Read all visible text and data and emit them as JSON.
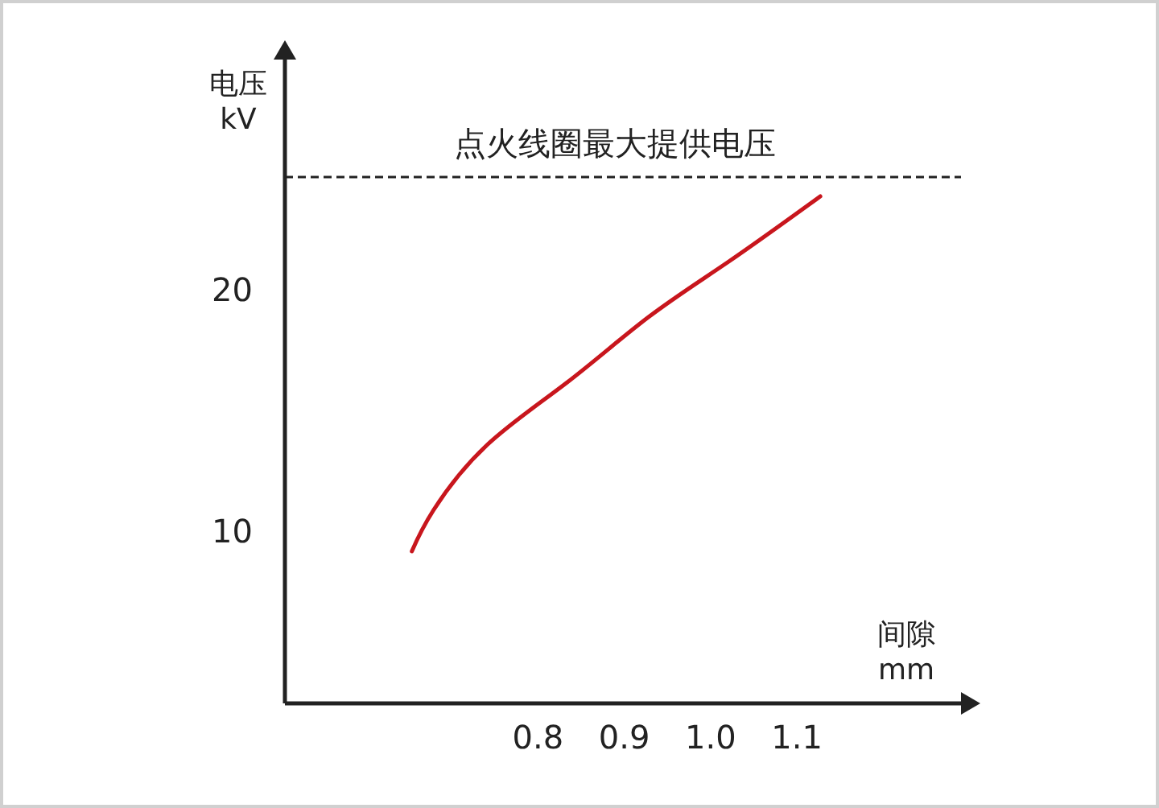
{
  "chart_data": {
    "type": "line",
    "xlabel": "间隙\nmm",
    "ylabel": "电压\nkV",
    "x": [
      0.654,
      0.679,
      0.741,
      0.834,
      0.928,
      1.021,
      1.127
    ],
    "series": [
      {
        "color": "#c8161d",
        "values": [
          9.2,
          10.9,
          13.6,
          16.2,
          18.9,
          21.2,
          23.9
        ]
      }
    ],
    "xlim": [
      0.507,
      1.29
    ],
    "ylim": [
      2.9,
      29.7
    ],
    "xticks": [
      0.8,
      0.9,
      {
        "value": 1.0,
        "label": "1.0"
      },
      1.1
    ],
    "yticks": [
      10,
      20
    ],
    "ref_lines": [
      {
        "axis": "y",
        "value": 24.7,
        "label": "点火线圈最大提供电压",
        "line_style": "dashed",
        "color": "#222222"
      }
    ],
    "grid": false,
    "marker": "none",
    "line_style": "solid"
  }
}
